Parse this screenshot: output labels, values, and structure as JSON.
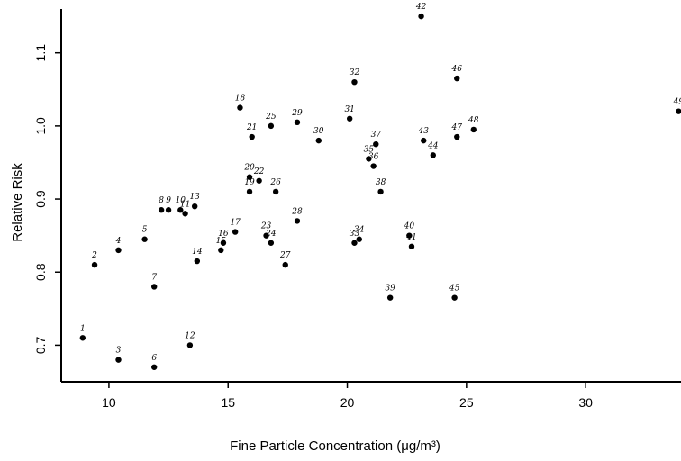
{
  "chart_data": {
    "type": "scatter",
    "xlabel": "Fine Particle Concentration (μg/m³)",
    "ylabel": "Relative Risk",
    "xlim": [
      8,
      34
    ],
    "ylim": [
      0.65,
      1.16
    ],
    "xticks": [
      10,
      15,
      20,
      25,
      30
    ],
    "yticks": [
      0.7,
      0.8,
      0.9,
      1.0,
      1.1
    ],
    "xtick_labels": [
      "10",
      "15",
      "20",
      "25",
      "30"
    ],
    "ytick_labels": [
      "0.7",
      "0.8",
      "0.9",
      "1.0",
      "1.1"
    ],
    "grid": false,
    "points": [
      {
        "label": "1",
        "x": 8.9,
        "y": 0.71
      },
      {
        "label": "2",
        "x": 9.4,
        "y": 0.81
      },
      {
        "label": "3",
        "x": 10.4,
        "y": 0.68
      },
      {
        "label": "4",
        "x": 10.4,
        "y": 0.83
      },
      {
        "label": "5",
        "x": 11.5,
        "y": 0.845
      },
      {
        "label": "6",
        "x": 11.9,
        "y": 0.67
      },
      {
        "label": "7",
        "x": 11.9,
        "y": 0.78
      },
      {
        "label": "8",
        "x": 12.2,
        "y": 0.885
      },
      {
        "label": "9",
        "x": 12.5,
        "y": 0.885
      },
      {
        "label": "10",
        "x": 13.0,
        "y": 0.885
      },
      {
        "label": "11",
        "x": 13.2,
        "y": 0.88
      },
      {
        "label": "12",
        "x": 13.4,
        "y": 0.7
      },
      {
        "label": "13",
        "x": 13.6,
        "y": 0.89
      },
      {
        "label": "14",
        "x": 13.7,
        "y": 0.815
      },
      {
        "label": "15",
        "x": 14.7,
        "y": 0.83
      },
      {
        "label": "16",
        "x": 14.8,
        "y": 0.84
      },
      {
        "label": "17",
        "x": 15.3,
        "y": 0.855
      },
      {
        "label": "18",
        "x": 15.5,
        "y": 1.025
      },
      {
        "label": "19",
        "x": 15.9,
        "y": 0.91
      },
      {
        "label": "20",
        "x": 15.9,
        "y": 0.93
      },
      {
        "label": "21",
        "x": 16.0,
        "y": 0.985
      },
      {
        "label": "22",
        "x": 16.3,
        "y": 0.925
      },
      {
        "label": "23",
        "x": 16.6,
        "y": 0.85
      },
      {
        "label": "24",
        "x": 16.8,
        "y": 0.84
      },
      {
        "label": "25",
        "x": 16.8,
        "y": 1.0
      },
      {
        "label": "26",
        "x": 17.0,
        "y": 0.91
      },
      {
        "label": "27",
        "x": 17.4,
        "y": 0.81
      },
      {
        "label": "28",
        "x": 17.9,
        "y": 0.87
      },
      {
        "label": "29",
        "x": 17.9,
        "y": 1.005
      },
      {
        "label": "30",
        "x": 18.8,
        "y": 0.98
      },
      {
        "label": "31",
        "x": 20.1,
        "y": 1.01
      },
      {
        "label": "32",
        "x": 20.3,
        "y": 1.06
      },
      {
        "label": "33",
        "x": 20.3,
        "y": 0.84
      },
      {
        "label": "34",
        "x": 20.5,
        "y": 0.845
      },
      {
        "label": "35",
        "x": 20.9,
        "y": 0.955
      },
      {
        "label": "36",
        "x": 21.1,
        "y": 0.945
      },
      {
        "label": "37",
        "x": 21.2,
        "y": 0.975
      },
      {
        "label": "38",
        "x": 21.4,
        "y": 0.91
      },
      {
        "label": "39",
        "x": 21.8,
        "y": 0.765
      },
      {
        "label": "40",
        "x": 22.6,
        "y": 0.85
      },
      {
        "label": "41",
        "x": 22.7,
        "y": 0.835
      },
      {
        "label": "42",
        "x": 23.1,
        "y": 1.15
      },
      {
        "label": "43",
        "x": 23.2,
        "y": 0.98
      },
      {
        "label": "44",
        "x": 23.6,
        "y": 0.96
      },
      {
        "label": "45",
        "x": 24.5,
        "y": 0.765
      },
      {
        "label": "46",
        "x": 24.6,
        "y": 1.065
      },
      {
        "label": "47",
        "x": 24.6,
        "y": 0.985
      },
      {
        "label": "48",
        "x": 25.3,
        "y": 0.995
      },
      {
        "label": "49",
        "x": 33.9,
        "y": 1.02
      }
    ]
  }
}
